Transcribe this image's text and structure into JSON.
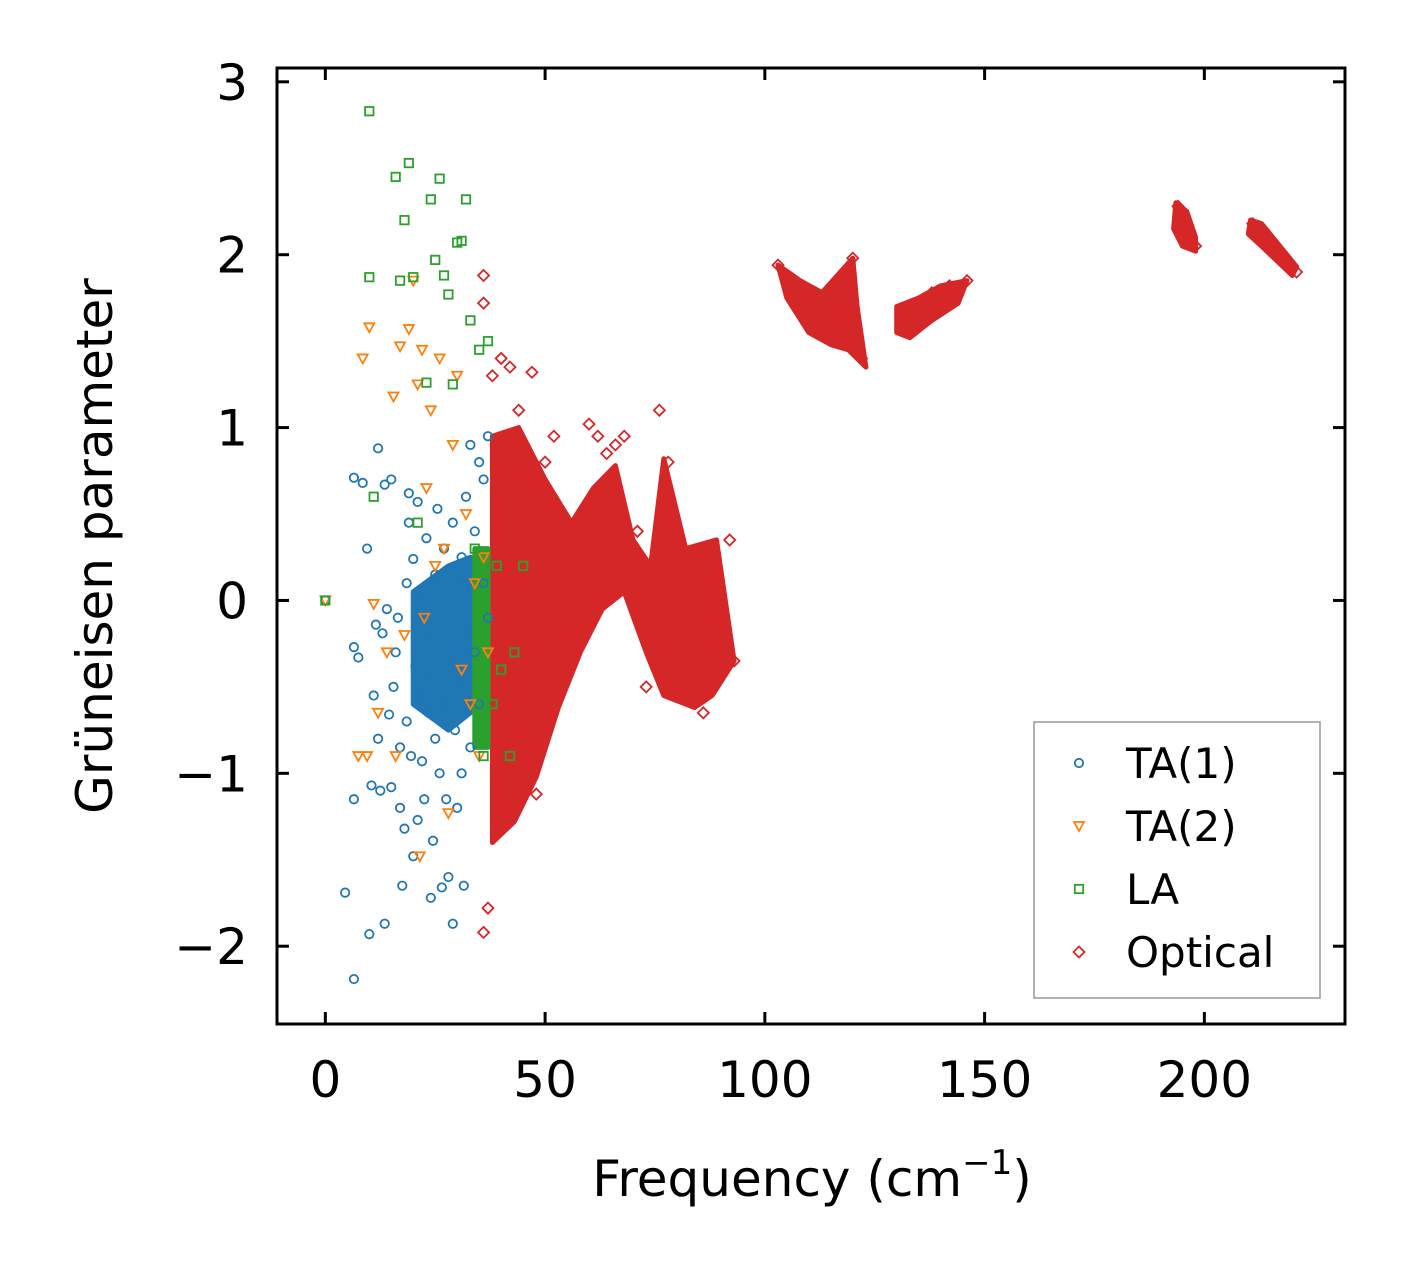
{
  "chart_data": {
    "type": "scatter",
    "title": "",
    "xlabel": "Frequency (cm",
    "xlabel_sup": "−1",
    "xlabel_suffix": ")",
    "ylabel": "Grüneisen parameter",
    "xlim": [
      -11,
      232
    ],
    "ylim": [
      -2.45,
      3.08
    ],
    "xticks": [
      0,
      50,
      100,
      150,
      200
    ],
    "xtick_labels": [
      "0",
      "50",
      "100",
      "150",
      "200"
    ],
    "yticks": [
      -2,
      -1,
      0,
      1,
      2,
      3
    ],
    "ytick_labels": [
      "−2",
      "−1",
      "0",
      "1",
      "2",
      "3"
    ],
    "grid": false,
    "legend_position": "lower-right",
    "series": [
      {
        "name": "TA(1)",
        "marker": "circle",
        "color": "#1f77b4",
        "points": [
          [
            0,
            0
          ],
          [
            4.5,
            -1.69
          ],
          [
            6.5,
            -2.19
          ],
          [
            6.5,
            -1.15
          ],
          [
            6.5,
            0.71
          ],
          [
            6.5,
            -0.27
          ],
          [
            7.5,
            -0.33
          ],
          [
            8.5,
            0.68
          ],
          [
            9.5,
            0.3
          ],
          [
            10,
            -1.93
          ],
          [
            10.5,
            -1.07
          ],
          [
            11,
            -0.55
          ],
          [
            11.5,
            -0.14
          ],
          [
            12,
            0.88
          ],
          [
            12,
            -0.8
          ],
          [
            12.5,
            -1.1
          ],
          [
            13,
            -0.19
          ],
          [
            13.5,
            -1.87
          ],
          [
            13.5,
            0.67
          ],
          [
            14,
            -0.05
          ],
          [
            14.5,
            -0.66
          ],
          [
            15,
            -1.08
          ],
          [
            15,
            0.7
          ],
          [
            15.5,
            -0.5
          ],
          [
            16,
            -0.3
          ],
          [
            16.5,
            -0.1
          ],
          [
            17,
            -0.85
          ],
          [
            17,
            -1.2
          ],
          [
            17.5,
            -1.65
          ],
          [
            18,
            -1.32
          ],
          [
            18.5,
            0.1
          ],
          [
            18.5,
            -0.7
          ],
          [
            19,
            0.45
          ],
          [
            19,
            0.62
          ],
          [
            19.5,
            -0.9
          ],
          [
            20,
            -1.48
          ],
          [
            20,
            0.24
          ],
          [
            20.5,
            -0.38
          ],
          [
            21,
            -1.27
          ],
          [
            21,
            0.57
          ],
          [
            21.5,
            -0.55
          ],
          [
            22,
            -0.93
          ],
          [
            22,
            0.05
          ],
          [
            22.5,
            -1.15
          ],
          [
            23,
            -0.2
          ],
          [
            23,
            0.36
          ],
          [
            23.5,
            -0.65
          ],
          [
            24,
            -1.72
          ],
          [
            24,
            -0.45
          ],
          [
            24.5,
            -1.39
          ],
          [
            25,
            0.15
          ],
          [
            25,
            -0.8
          ],
          [
            25.5,
            0.53
          ],
          [
            26,
            -0.28
          ],
          [
            26,
            -1.0
          ],
          [
            26.5,
            -1.66
          ],
          [
            27,
            0.3
          ],
          [
            27,
            -0.6
          ],
          [
            27.5,
            -1.15
          ],
          [
            28,
            -1.6
          ],
          [
            28,
            0.0
          ],
          [
            28.5,
            -0.35
          ],
          [
            29,
            -1.87
          ],
          [
            29,
            0.45
          ],
          [
            29.5,
            -0.75
          ],
          [
            30,
            -1.2
          ],
          [
            30,
            0.1
          ],
          [
            30.5,
            -0.5
          ],
          [
            31,
            0.25
          ],
          [
            31,
            -1.0
          ],
          [
            31.5,
            -1.65
          ],
          [
            32,
            -0.2
          ],
          [
            32,
            0.6
          ],
          [
            33,
            -0.85
          ],
          [
            33,
            0.9
          ],
          [
            34,
            0.4
          ],
          [
            34,
            -0.3
          ],
          [
            35,
            0.8
          ],
          [
            35,
            -0.6
          ],
          [
            36,
            0.7
          ],
          [
            36,
            0.1
          ],
          [
            37,
            0.95
          ],
          [
            37,
            -0.1
          ]
        ]
      },
      {
        "name": "TA(2)",
        "marker": "triangle-down",
        "color": "#ff7f0e",
        "points": [
          [
            0,
            0
          ],
          [
            7.5,
            -0.9
          ],
          [
            8.5,
            1.4
          ],
          [
            9.5,
            -0.9
          ],
          [
            10,
            1.58
          ],
          [
            11,
            -0.02
          ],
          [
            12,
            -0.65
          ],
          [
            14,
            -0.3
          ],
          [
            15.5,
            1.18
          ],
          [
            16,
            -0.9
          ],
          [
            17,
            1.47
          ],
          [
            18,
            -0.2
          ],
          [
            19,
            1.57
          ],
          [
            20,
            1.85
          ],
          [
            21,
            1.25
          ],
          [
            21.5,
            -1.48
          ],
          [
            22,
            1.45
          ],
          [
            22.5,
            -0.1
          ],
          [
            23,
            0.65
          ],
          [
            24,
            1.1
          ],
          [
            25,
            0.2
          ],
          [
            26,
            1.4
          ],
          [
            27,
            0.3
          ],
          [
            28,
            -1.23
          ],
          [
            29,
            0.9
          ],
          [
            30,
            1.3
          ],
          [
            31,
            -0.4
          ],
          [
            32,
            0.5
          ],
          [
            33,
            -0.6
          ],
          [
            34,
            0.1
          ],
          [
            35,
            -0.9
          ],
          [
            36,
            0.25
          ],
          [
            37,
            -0.3
          ]
        ]
      },
      {
        "name": "LA",
        "marker": "square",
        "color": "#2ca02c",
        "points": [
          [
            0,
            0
          ],
          [
            10,
            2.83
          ],
          [
            10,
            1.87
          ],
          [
            11,
            0.6
          ],
          [
            16,
            2.45
          ],
          [
            17,
            1.85
          ],
          [
            18,
            2.2
          ],
          [
            19,
            2.53
          ],
          [
            20,
            1.87
          ],
          [
            21,
            0.45
          ],
          [
            23,
            1.26
          ],
          [
            24,
            2.32
          ],
          [
            25,
            1.97
          ],
          [
            26,
            2.44
          ],
          [
            27,
            1.88
          ],
          [
            28,
            1.77
          ],
          [
            29,
            1.25
          ],
          [
            30,
            2.07
          ],
          [
            31,
            2.08
          ],
          [
            32,
            2.32
          ],
          [
            33,
            1.62
          ],
          [
            34,
            0.3
          ],
          [
            35,
            1.45
          ],
          [
            36,
            -0.9
          ],
          [
            37,
            1.5
          ],
          [
            38,
            -0.6
          ],
          [
            39,
            0.2
          ],
          [
            40,
            -0.4
          ],
          [
            42,
            -0.9
          ],
          [
            43,
            -0.3
          ],
          [
            45,
            0.2
          ]
        ]
      },
      {
        "name": "Optical",
        "marker": "diamond",
        "color": "#d62728",
        "points": [
          [
            36,
            1.88
          ],
          [
            36,
            1.72
          ],
          [
            36,
            -1.92
          ],
          [
            37,
            -1.78
          ],
          [
            38,
            1.3
          ],
          [
            40,
            1.4
          ],
          [
            42,
            1.35
          ],
          [
            44,
            1.1
          ],
          [
            45,
            0.9
          ],
          [
            47,
            1.32
          ],
          [
            48,
            -1.12
          ],
          [
            50,
            0.8
          ],
          [
            52,
            0.95
          ],
          [
            60,
            1.02
          ],
          [
            62,
            0.95
          ],
          [
            64,
            0.85
          ],
          [
            66,
            0.9
          ],
          [
            68,
            0.95
          ],
          [
            71,
            0.4
          ],
          [
            73,
            -0.5
          ],
          [
            76,
            1.1
          ],
          [
            78,
            0.8
          ],
          [
            80,
            -0.4
          ],
          [
            82,
            0.2
          ],
          [
            84,
            -0.55
          ],
          [
            86,
            -0.65
          ],
          [
            88,
            0.3
          ],
          [
            90,
            -0.2
          ],
          [
            92,
            0.35
          ],
          [
            93,
            -0.35
          ],
          [
            103,
            1.94
          ],
          [
            108,
            1.8
          ],
          [
            112,
            1.55
          ],
          [
            114,
            1.52
          ],
          [
            117,
            1.78
          ],
          [
            120,
            1.98
          ],
          [
            122,
            1.4
          ],
          [
            131,
            1.6
          ],
          [
            134,
            1.7
          ],
          [
            138,
            1.78
          ],
          [
            142,
            1.82
          ],
          [
            146,
            1.85
          ],
          [
            194,
            2.28
          ],
          [
            196,
            2.15
          ],
          [
            198,
            2.05
          ],
          [
            211,
            2.18
          ],
          [
            214,
            2.1
          ],
          [
            218,
            1.98
          ],
          [
            221,
            1.9
          ]
        ]
      }
    ],
    "dense_regions": [
      {
        "series": "Optical",
        "poly": [
          [
            38,
            0.95
          ],
          [
            44,
            1.0
          ],
          [
            50,
            0.7
          ],
          [
            56,
            0.45
          ],
          [
            61,
            0.65
          ],
          [
            66,
            0.78
          ],
          [
            70,
            0.35
          ],
          [
            74,
            0.2
          ],
          [
            77,
            0.82
          ],
          [
            82,
            0.3
          ],
          [
            89,
            0.35
          ],
          [
            93,
            -0.35
          ],
          [
            88,
            -0.55
          ],
          [
            84,
            -0.62
          ],
          [
            77,
            -0.55
          ],
          [
            73,
            -0.3
          ],
          [
            68,
            0.05
          ],
          [
            63,
            -0.05
          ],
          [
            58,
            -0.3
          ],
          [
            53,
            -0.62
          ],
          [
            48,
            -1.02
          ],
          [
            43,
            -1.28
          ],
          [
            38,
            -1.4
          ]
        ]
      },
      {
        "series": "Optical",
        "poly": [
          [
            103,
            1.94
          ],
          [
            108,
            1.85
          ],
          [
            113,
            1.78
          ],
          [
            120,
            1.98
          ],
          [
            121,
            1.7
          ],
          [
            123,
            1.35
          ],
          [
            119,
            1.45
          ],
          [
            115,
            1.48
          ],
          [
            110,
            1.55
          ],
          [
            105,
            1.75
          ]
        ]
      },
      {
        "series": "Optical",
        "poly": [
          [
            130,
            1.7
          ],
          [
            135,
            1.75
          ],
          [
            140,
            1.82
          ],
          [
            146,
            1.85
          ],
          [
            144,
            1.72
          ],
          [
            138,
            1.62
          ],
          [
            133,
            1.52
          ],
          [
            130,
            1.55
          ]
        ]
      },
      {
        "series": "Optical",
        "poly": [
          [
            193.5,
            2.3
          ],
          [
            196,
            2.25
          ],
          [
            198,
            2.1
          ],
          [
            198,
            2.02
          ],
          [
            195,
            2.05
          ],
          [
            193,
            2.15
          ]
        ]
      },
      {
        "series": "Optical",
        "poly": [
          [
            210.5,
            2.2
          ],
          [
            213,
            2.18
          ],
          [
            221,
            1.93
          ],
          [
            220,
            1.88
          ],
          [
            213,
            2.05
          ],
          [
            210,
            2.12
          ]
        ]
      },
      {
        "series": "TA(1)",
        "poly": [
          [
            20,
            0.05
          ],
          [
            28,
            0.2
          ],
          [
            33,
            0.25
          ],
          [
            33,
            -0.65
          ],
          [
            28,
            -0.75
          ],
          [
            20,
            -0.6
          ]
        ]
      },
      {
        "series": "LA",
        "poly": [
          [
            34,
            0.3
          ],
          [
            37,
            0.3
          ],
          [
            37,
            -0.85
          ],
          [
            34,
            -0.85
          ]
        ]
      }
    ]
  }
}
